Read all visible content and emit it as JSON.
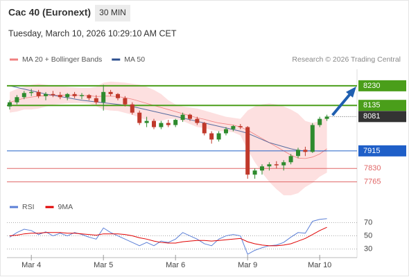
{
  "header": {
    "title": "Cac 40 (Euronext)",
    "timeframe": "30 MIN",
    "datetime": "Tuesday, March 10, 2026 10:29:10 AM CET"
  },
  "chart_data": [
    {
      "type": "candlestick",
      "source": "Research © 2026 Trading Central",
      "ylim": [
        7690,
        8310
      ],
      "up_color": "#2e8b2e",
      "down_color": "#c0392b",
      "open": [
        8130,
        8150,
        8175,
        8195,
        8200,
        8180,
        8190,
        8185,
        8175,
        8190,
        8180,
        8185,
        8170,
        8150,
        8200,
        8190,
        8170,
        8140,
        8100,
        8050,
        8060,
        8030,
        8050,
        8040,
        8065,
        8090,
        8070,
        8050,
        8000,
        7970,
        8000,
        8020,
        8035,
        8030,
        7800,
        7820,
        7840,
        7850,
        7845,
        7860,
        7890,
        7920,
        7910,
        8040,
        8070
      ],
      "high": [
        8160,
        8185,
        8205,
        8215,
        8210,
        8200,
        8205,
        8200,
        8195,
        8200,
        8195,
        8190,
        8185,
        8235,
        8210,
        8195,
        8180,
        8150,
        8110,
        8080,
        8070,
        8060,
        8065,
        8070,
        8100,
        8095,
        8080,
        8055,
        8010,
        8010,
        8030,
        8040,
        8045,
        8035,
        7830,
        7850,
        7860,
        7865,
        7870,
        7900,
        7930,
        7935,
        8050,
        8080,
        8090
      ],
      "low": [
        8115,
        8140,
        8165,
        8180,
        8170,
        8160,
        8175,
        8165,
        8160,
        8170,
        8165,
        8160,
        8140,
        8110,
        8180,
        8160,
        8130,
        8090,
        8040,
        8030,
        8020,
        8020,
        8030,
        8030,
        8055,
        8060,
        8040,
        7990,
        7950,
        7960,
        7990,
        8010,
        8020,
        7780,
        7780,
        7800,
        7820,
        7830,
        7820,
        7850,
        7880,
        7890,
        7905,
        8030,
        8060
      ],
      "close": [
        8150,
        8175,
        8195,
        8200,
        8180,
        8190,
        8185,
        8175,
        8190,
        8180,
        8185,
        8170,
        8150,
        8200,
        8190,
        8170,
        8140,
        8100,
        8050,
        8060,
        8030,
        8050,
        8040,
        8065,
        8090,
        8070,
        8050,
        8000,
        7970,
        8000,
        8020,
        8035,
        8030,
        7800,
        7820,
        7840,
        7850,
        7845,
        7860,
        7890,
        7920,
        7910,
        8040,
        8070,
        8081
      ],
      "overlays": [
        {
          "name": "MA 20 + Bollinger Bands",
          "color": "#f08080",
          "band_color": "#fde0e0",
          "values": [
            8150,
            8160,
            8170,
            8175,
            8180,
            8182,
            8184,
            8185,
            8185,
            8184,
            8183,
            8182,
            8178,
            8180,
            8180,
            8178,
            8172,
            8165,
            8155,
            8145,
            8135,
            8125,
            8115,
            8105,
            8095,
            8085,
            8075,
            8068,
            8058,
            8050,
            8045,
            8040,
            8030,
            8015,
            7995,
            7975,
            7955,
            7935,
            7915,
            7895,
            7880,
            7878,
            7885,
            7900,
            7925
          ],
          "upper": [
            8200,
            8215,
            8225,
            8235,
            8240,
            8235,
            8230,
            8228,
            8225,
            8222,
            8220,
            8220,
            8225,
            8245,
            8250,
            8248,
            8245,
            8240,
            8235,
            8225,
            8210,
            8190,
            8160,
            8140,
            8130,
            8125,
            8120,
            8110,
            8100,
            8090,
            8080,
            8075,
            8070,
            8110,
            8130,
            8140,
            8145,
            8140,
            8130,
            8115,
            8095,
            8060,
            8050,
            8060,
            8080
          ],
          "lower": [
            8100,
            8105,
            8115,
            8115,
            8120,
            8129,
            8138,
            8142,
            8145,
            8146,
            8146,
            8144,
            8131,
            8115,
            8110,
            8108,
            8099,
            8090,
            8075,
            8065,
            8060,
            8060,
            8070,
            8070,
            8060,
            8045,
            8030,
            8026,
            8016,
            8010,
            8010,
            8005,
            7990,
            7920,
            7860,
            7810,
            7765,
            7730,
            7700,
            7700,
            7710,
            7740,
            7760,
            7790,
            7810
          ]
        },
        {
          "name": "MA 50",
          "color": "#2c4f8f",
          "values": [
            8230,
            8222,
            8214,
            8206,
            8198,
            8190,
            8184,
            8178,
            8172,
            8166,
            8160,
            8156,
            8152,
            8148,
            8144,
            8140,
            8136,
            8130,
            8122,
            8114,
            8106,
            8098,
            8090,
            8082,
            8074,
            8066,
            8058,
            8050,
            8042,
            8034,
            8026,
            8018,
            8010,
            8000,
            7985,
            7970,
            7955,
            7945,
            7935,
            7925,
            7918,
            7915,
            7915,
            7914,
            7915
          ]
        }
      ],
      "levels": [
        {
          "value": 8230,
          "color": "#4a9e1a",
          "boxed": true
        },
        {
          "value": 8135,
          "color": "#4a9e1a",
          "boxed": true
        },
        {
          "value": 7915,
          "color": "#1f5fc8",
          "boxed": true
        },
        {
          "value": 7830,
          "color": "#e06666",
          "boxed": false
        },
        {
          "value": 7765,
          "color": "#e06666",
          "boxed": false
        }
      ],
      "last_price": {
        "value": 8081,
        "color": "#333333"
      }
    },
    {
      "type": "line",
      "ylim": [
        18,
        80
      ],
      "yticks": [
        30,
        50,
        70
      ],
      "grid": true,
      "categories": [
        null,
        null,
        null,
        "Mar 4",
        null,
        null,
        null,
        null,
        null,
        null,
        null,
        null,
        null,
        "Mar 5",
        null,
        null,
        null,
        null,
        null,
        null,
        null,
        null,
        null,
        "Mar 6",
        null,
        null,
        null,
        null,
        null,
        null,
        null,
        null,
        null,
        "Mar 9",
        null,
        null,
        null,
        null,
        null,
        null,
        null,
        null,
        null,
        "Mar 10",
        null
      ],
      "series": [
        {
          "name": "RSI",
          "color": "#5b7fd6",
          "values": [
            48,
            55,
            60,
            58,
            52,
            56,
            50,
            54,
            50,
            55,
            52,
            48,
            45,
            62,
            55,
            50,
            45,
            40,
            35,
            40,
            35,
            42,
            40,
            45,
            55,
            50,
            45,
            38,
            35,
            45,
            50,
            52,
            50,
            22,
            28,
            32,
            35,
            36,
            40,
            48,
            55,
            54,
            72,
            75,
            76
          ]
        },
        {
          "name": "9MA",
          "color": "#e00000",
          "values": [
            50,
            51,
            53,
            54,
            54,
            55,
            55,
            55,
            54,
            54,
            53,
            52,
            51,
            53,
            53,
            53,
            52,
            50,
            47,
            45,
            42,
            40,
            39,
            39,
            41,
            42,
            43,
            43,
            42,
            43,
            44,
            45,
            46,
            41,
            38,
            36,
            35,
            35,
            36,
            38,
            42,
            46,
            52,
            58,
            63
          ]
        }
      ]
    }
  ]
}
